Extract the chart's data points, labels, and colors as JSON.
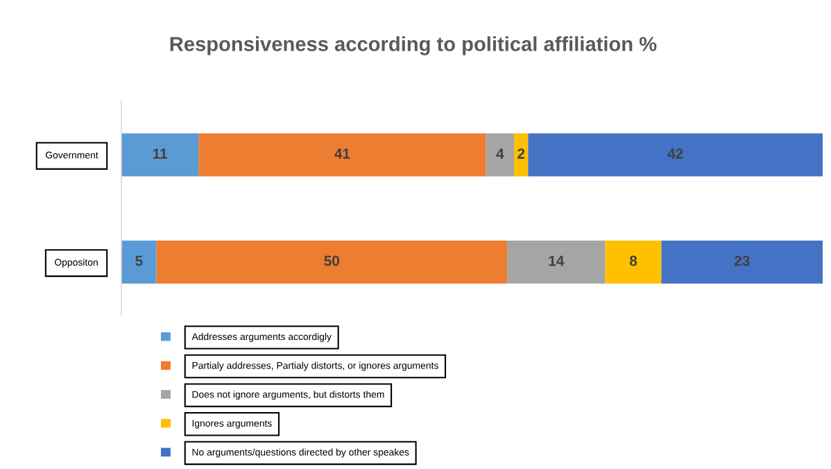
{
  "chart_data": {
    "type": "bar",
    "orientation": "horizontal",
    "stacked": true,
    "title": "Responsiveness according to political affiliation %",
    "categories": [
      "Government",
      "Oppositon"
    ],
    "series": [
      {
        "name": "Addresses arguments accordigly",
        "color": "#5b9bd5",
        "values": [
          11,
          5
        ]
      },
      {
        "name": "Partialy addresses, Partialy distorts, or ignores arguments",
        "color": "#ed7d31",
        "values": [
          41,
          50
        ]
      },
      {
        "name": "Does not ignore arguments, but distorts them",
        "color": "#a5a5a5",
        "values": [
          4,
          14
        ]
      },
      {
        "name": "Ignores arguments",
        "color": "#ffc000",
        "values": [
          2,
          8
        ]
      },
      {
        "name": "No arguments/questions directed by other speakes",
        "color": "#4472c4",
        "values": [
          42,
          23
        ]
      }
    ],
    "xlim": [
      0,
      100
    ],
    "data_labels": true,
    "legend": "bottom",
    "tick_labels": "y"
  }
}
